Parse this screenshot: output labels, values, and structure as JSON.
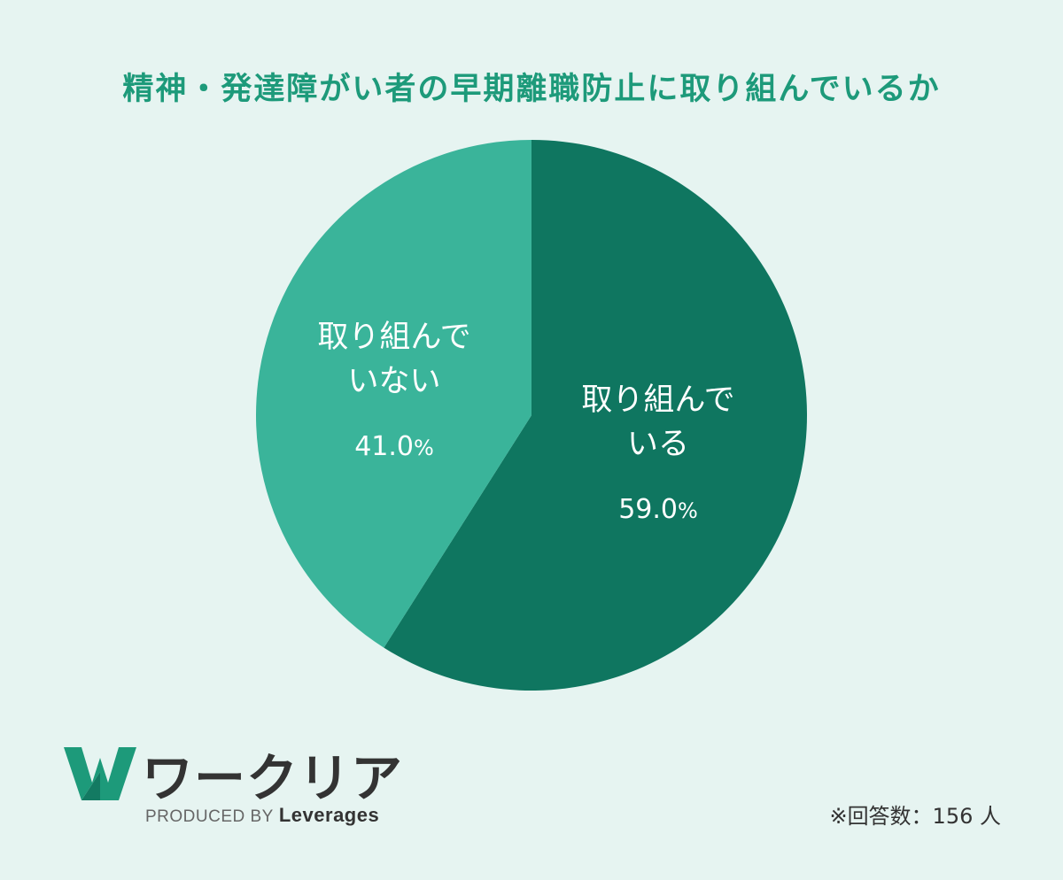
{
  "title": "精神・発達障がい者の早期離職防止に取り組んでいるか",
  "chart_data": {
    "type": "pie",
    "start": "12 o'clock, clockwise",
    "slices": [
      {
        "label_lines": [
          "取り組んで",
          "いる"
        ],
        "value": 59.0,
        "value_text": "59.0",
        "pct_sign": "%",
        "color": "#0f7660"
      },
      {
        "label_lines": [
          "取り組んで",
          "いない"
        ],
        "value": 41.0,
        "value_text": "41.0",
        "pct_sign": "%",
        "color": "#3ab49a"
      }
    ]
  },
  "logo": {
    "name": "ワークリア",
    "produced_by": "PRODUCED BY",
    "brand": "Leverages",
    "mark_color": "#1d9a7a"
  },
  "note": "※回答数：156 人"
}
